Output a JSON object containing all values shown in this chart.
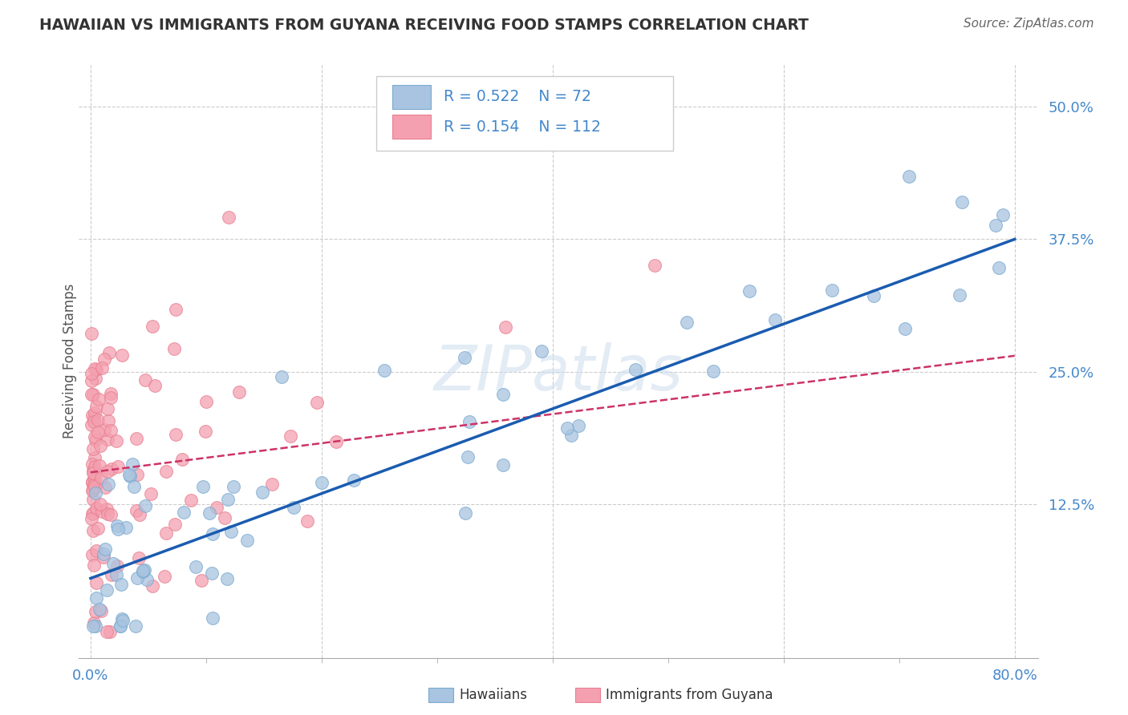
{
  "title": "HAWAIIAN VS IMMIGRANTS FROM GUYANA RECEIVING FOOD STAMPS CORRELATION CHART",
  "source": "Source: ZipAtlas.com",
  "ylabel": "Receiving Food Stamps",
  "watermark": "ZIPatlas",
  "xlim": [
    -0.01,
    0.82
  ],
  "ylim": [
    -0.02,
    0.54
  ],
  "xtick_positions": [
    0.0,
    0.8
  ],
  "xticklabels": [
    "0.0%",
    "80.0%"
  ],
  "ytick_positions": [
    0.125,
    0.25,
    0.375,
    0.5
  ],
  "ytick_labels": [
    "12.5%",
    "25.0%",
    "37.5%",
    "50.0%"
  ],
  "gridline_y": [
    0.125,
    0.25,
    0.375,
    0.5
  ],
  "gridline_x": [
    0.0,
    0.2,
    0.4,
    0.6,
    0.8
  ],
  "blue_R": "0.522",
  "blue_N": "72",
  "pink_R": "0.154",
  "pink_N": "112",
  "blue_color": "#A8C4E0",
  "pink_color": "#F4A0B0",
  "blue_edge_color": "#7AAAD0",
  "pink_edge_color": "#E88090",
  "blue_line_color": "#1A5CB0",
  "pink_line_color": "#CC3366",
  "title_color": "#333333",
  "source_color": "#666666",
  "tick_color": "#4488CC",
  "legend_label1": "Hawaiians",
  "legend_label2": "Immigrants from Guyana",
  "blue_trend_start_y": 0.055,
  "blue_trend_end_y": 0.375,
  "pink_trend_start_y": 0.155,
  "pink_trend_end_y": 0.265
}
